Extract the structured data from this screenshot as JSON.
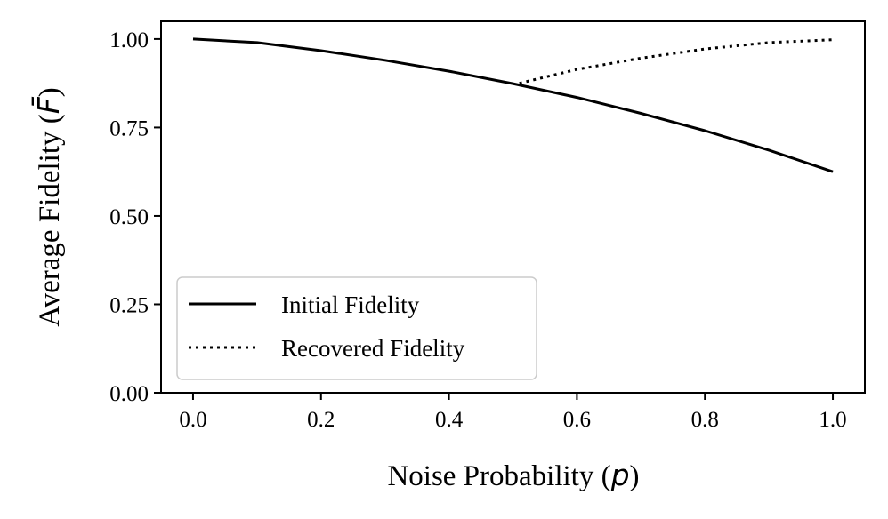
{
  "chart_data": {
    "type": "line",
    "title": "",
    "xlabel": "Noise Probability (p)",
    "xlabel_main": "Noise Probability (",
    "xlabel_var": "p",
    "xlabel_close": ")",
    "ylabel": "Average Fidelity (F̄)",
    "ylabel_main": "Average Fidelity (",
    "ylabel_var": "F̄",
    "ylabel_close": ")",
    "xlim": [
      -0.05,
      1.05
    ],
    "ylim": [
      0.0,
      1.05
    ],
    "xticks": [
      0.0,
      0.2,
      0.4,
      0.6,
      0.8,
      1.0
    ],
    "xtick_labels": [
      "0.0",
      "0.2",
      "0.4",
      "0.6",
      "0.8",
      "1.0"
    ],
    "yticks": [
      0.0,
      0.25,
      0.5,
      0.75,
      1.0
    ],
    "ytick_labels": [
      "0.00",
      "0.25",
      "0.50",
      "0.75",
      "1.00"
    ],
    "grid": false,
    "legend_position": "lower-left",
    "series": [
      {
        "name": "Initial Fidelity",
        "style": "solid",
        "color": "#000000",
        "x": [
          0.0,
          0.1,
          0.2,
          0.3,
          0.4,
          0.5,
          0.6,
          0.7,
          0.8,
          0.9,
          1.0
        ],
        "y": [
          1.0,
          0.99,
          0.967,
          0.94,
          0.909,
          0.874,
          0.835,
          0.79,
          0.741,
          0.686,
          0.625
        ]
      },
      {
        "name": "Recovered Fidelity",
        "style": "dotted",
        "color": "#000000",
        "x": [
          0.51,
          0.6,
          0.7,
          0.8,
          0.9,
          1.0
        ],
        "y": [
          0.875,
          0.914,
          0.946,
          0.972,
          0.99,
          0.998
        ]
      }
    ]
  }
}
